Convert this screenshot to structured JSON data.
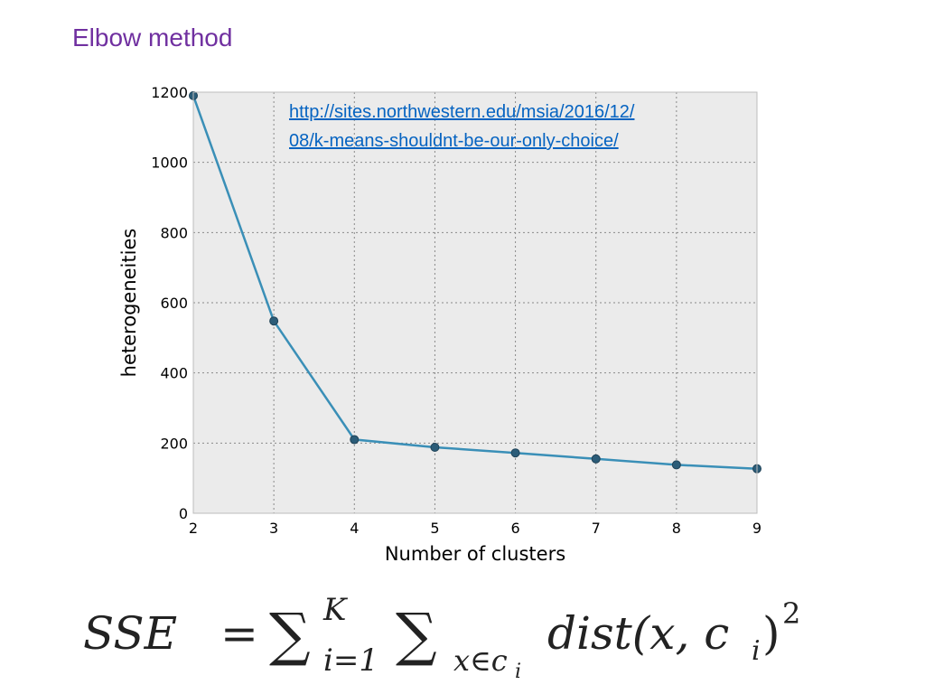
{
  "slide": {
    "title": "Elbow method"
  },
  "link": {
    "line1": "http://sites.northwestern.edu/msia/2016/12/",
    "line2": "08/k-means-shouldnt-be-our-only-choice/"
  },
  "chart_data": {
    "type": "line",
    "title": "",
    "xlabel": "Number of clusters",
    "ylabel": "heterogeneities",
    "x": [
      2,
      3,
      4,
      5,
      6,
      7,
      8,
      9
    ],
    "series": [
      {
        "values": [
          1190,
          548,
          210,
          188,
          172,
          155,
          138,
          127
        ]
      }
    ],
    "xlim": [
      2,
      9
    ],
    "ylim": [
      0,
      1200
    ],
    "xticks": [
      "2",
      "3",
      "4",
      "5",
      "6",
      "7",
      "8",
      "9"
    ],
    "yticks": [
      "0",
      "200",
      "400",
      "600",
      "800",
      "1000",
      "1200"
    ],
    "grid": true,
    "background": "#ebebeb",
    "line_color": "#3a8fb7",
    "marker_color": "#2b5c78"
  },
  "formula": {
    "lhs": "SSE",
    "equals": "=",
    "sum1": "∑",
    "sum1_upper": "K",
    "sum1_lower": "i=1",
    "sum2": "∑",
    "sum2_lower": "x∈c",
    "sum2_lower_sub": "i",
    "func": "dist(x, c",
    "func_sub": "i",
    "func_close": ")",
    "exponent": "2"
  }
}
